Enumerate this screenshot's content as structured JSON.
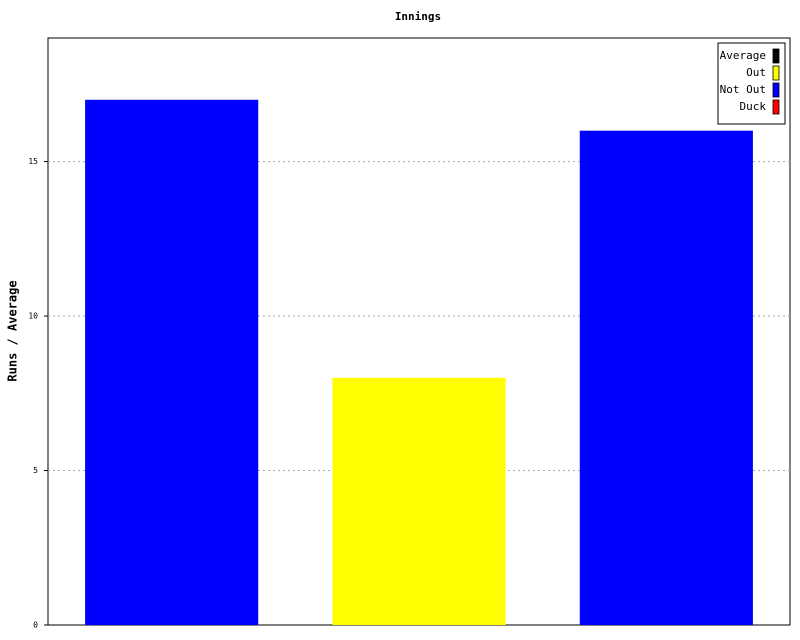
{
  "chart_data": {
    "type": "bar",
    "title": "Innings",
    "y_label": "Runs / Average",
    "categories": [
      null,
      null,
      null
    ],
    "series": [
      {
        "name": "Average",
        "color": "#000000",
        "values": [
          null,
          null,
          null
        ]
      },
      {
        "name": "Out",
        "color": "#ffff00",
        "values": [
          null,
          8,
          null
        ]
      },
      {
        "name": "Not Out",
        "color": "#0000ff",
        "values": [
          17,
          null,
          16
        ]
      },
      {
        "name": "Duck",
        "color": "#ff0000",
        "values": [
          null,
          null,
          null
        ]
      }
    ],
    "ylim": [
      0,
      19
    ],
    "yticks": [
      0,
      5,
      10,
      15
    ],
    "grid": true,
    "legend": "top-right"
  }
}
